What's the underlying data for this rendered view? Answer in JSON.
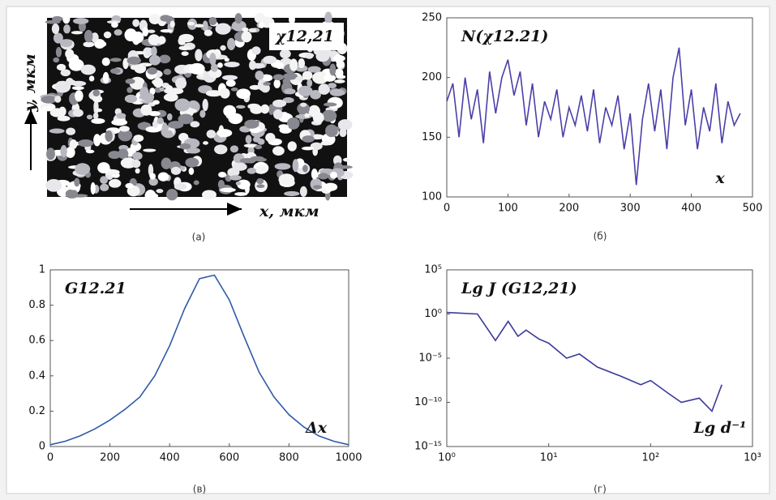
{
  "chart_data": [
    {
      "type": "image",
      "title": "χ12,21",
      "xlabel": "x, мкм",
      "ylabel": "y, мкм",
      "caption": "(а)"
    },
    {
      "type": "line",
      "title": "N(χ12.21)",
      "xlabel": "x",
      "caption": "(б)",
      "color": "#4a3fa8",
      "x": [
        0,
        10,
        20,
        30,
        40,
        50,
        60,
        70,
        80,
        90,
        100,
        110,
        120,
        130,
        140,
        150,
        160,
        170,
        180,
        190,
        200,
        210,
        220,
        230,
        240,
        250,
        260,
        270,
        280,
        290,
        300,
        310,
        320,
        330,
        340,
        350,
        360,
        370,
        380,
        390,
        400,
        410,
        420,
        430,
        440,
        450,
        460,
        470,
        480
      ],
      "values": [
        180,
        195,
        150,
        200,
        165,
        190,
        145,
        205,
        170,
        200,
        215,
        185,
        205,
        160,
        195,
        150,
        180,
        165,
        190,
        150,
        175,
        160,
        185,
        155,
        190,
        145,
        175,
        160,
        185,
        140,
        170,
        110,
        165,
        195,
        155,
        190,
        140,
        200,
        225,
        160,
        190,
        140,
        175,
        155,
        195,
        145,
        180,
        160,
        170
      ],
      "xlim": [
        0,
        500
      ],
      "ylim": [
        100,
        250
      ],
      "xticks": [
        0,
        100,
        200,
        300,
        400,
        500
      ],
      "yticks": [
        100,
        150,
        200,
        250
      ]
    },
    {
      "type": "line",
      "title": "G12.21",
      "xlabel": "Δx",
      "caption": "(в)",
      "color": "#2e5aa8",
      "x": [
        0,
        50,
        100,
        150,
        200,
        250,
        300,
        350,
        400,
        450,
        500,
        550,
        600,
        650,
        700,
        750,
        800,
        850,
        900,
        950,
        1000
      ],
      "values": [
        0.01,
        0.03,
        0.06,
        0.1,
        0.15,
        0.21,
        0.28,
        0.4,
        0.57,
        0.78,
        0.95,
        0.97,
        0.83,
        0.62,
        0.42,
        0.28,
        0.18,
        0.11,
        0.06,
        0.03,
        0.01
      ],
      "xlim": [
        0,
        1000
      ],
      "ylim": [
        0,
        1
      ],
      "xticks": [
        0,
        200,
        400,
        600,
        800,
        1000
      ],
      "yticks": [
        0,
        0.2,
        0.4,
        0.6,
        0.8,
        1
      ]
    },
    {
      "type": "line",
      "title": "Lg J (G12,21)",
      "xlabel": "Lg d⁻¹",
      "caption": "(г)",
      "color": "#3a3a9c",
      "xlog": true,
      "ylog": true,
      "x": [
        1,
        2,
        3,
        4,
        5,
        6,
        8,
        10,
        15,
        20,
        30,
        50,
        80,
        100,
        150,
        200,
        300,
        400,
        500
      ],
      "values": [
        1.5,
        1,
        0.001,
        0.15,
        0.003,
        0.015,
        0.0015,
        0.0005,
        1e-05,
        3e-05,
        1e-06,
        1e-07,
        1e-08,
        3e-08,
        1e-09,
        1e-10,
        3e-10,
        1e-11,
        1e-08
      ],
      "xlim": [
        1,
        1000
      ],
      "ylim": [
        1e-15,
        100000
      ],
      "xticks": [
        {
          "value": 1,
          "label": "10⁰"
        },
        {
          "value": 10,
          "label": "10¹"
        },
        {
          "value": 100,
          "label": "10²"
        },
        {
          "value": 1000,
          "label": "10³"
        }
      ],
      "yticks": [
        {
          "value": 1e-15,
          "label": "10⁻¹⁵"
        },
        {
          "value": 1e-10,
          "label": "10⁻¹⁰"
        },
        {
          "value": 1e-05,
          "label": "10⁻⁵"
        },
        {
          "value": 1,
          "label": "10⁰"
        },
        {
          "value": 100000,
          "label": "10⁵"
        }
      ]
    }
  ]
}
